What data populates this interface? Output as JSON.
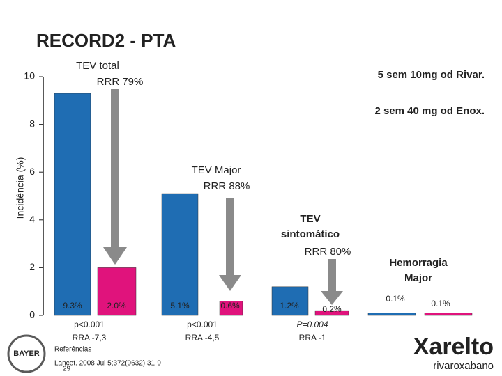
{
  "chart_data": {
    "type": "bar",
    "title": "RECORD2 - PTA",
    "y_label": "Incidência (%)",
    "ylim": [
      0,
      10
    ],
    "yticks": [
      0,
      2,
      4,
      6,
      8,
      10
    ],
    "groups": [
      {
        "label": [
          "TEV total"
        ],
        "rrr": "RRR 79%",
        "p": "p<0.001",
        "rra": "RRA -7,3"
      },
      {
        "label": [
          "TEV Major"
        ],
        "rrr": "RRR 88%",
        "p": "p<0.001",
        "rra": "RRA -4,5"
      },
      {
        "label": [
          "TEV",
          "sintomático"
        ],
        "rrr": "RRR 80%",
        "p": "P=0.004",
        "rra": "RRA -1"
      },
      {
        "label": [
          "Hemorragia",
          "Major"
        ]
      }
    ],
    "series": [
      {
        "name": "2 sem 40 mg od Enox.",
        "color": "#1f6db3",
        "values": [
          9.3,
          5.1,
          1.2,
          0.1
        ],
        "value_labels": [
          "9.3%",
          "5.1%",
          "1.2%",
          "0.1%"
        ]
      },
      {
        "name": "5 sem 10mg od Rivar.",
        "color": "#e0137c",
        "values": [
          2.0,
          0.6,
          0.2,
          0.1
        ],
        "value_labels": [
          "2.0%",
          "0.6%",
          "0.2%",
          "0.1%"
        ]
      }
    ]
  },
  "footer": {
    "references_title": "Referências",
    "reference": "Lancet. 2008 Jul 5;372(9632):31-9",
    "page": "29",
    "brand": "Xarelto",
    "brand_sub": "rivaroxabano",
    "company": "BAYER"
  }
}
